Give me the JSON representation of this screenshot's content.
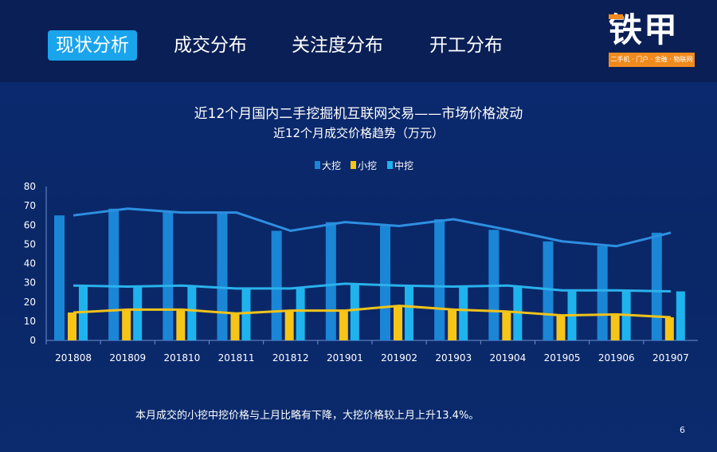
{
  "nav": {
    "tabs": [
      {
        "label": "现状分析",
        "active": true
      },
      {
        "label": "成交分布",
        "active": false
      },
      {
        "label": "关注度分布",
        "active": false
      },
      {
        "label": "开工分布",
        "active": false
      }
    ]
  },
  "logo": {
    "name": "铁甲",
    "tagline": "二手机 · 门户 · 金融 · 物联网"
  },
  "page_number": "6",
  "note": "本月成交的小挖中挖价格与上月比略有下降，大挖价格较上月上升13.4%。",
  "colors": {
    "large": "#1b86d6",
    "small": "#f6c515",
    "medium": "#1fb3ee",
    "large_line": "#2e8fe0",
    "small_line": "#f2c21a",
    "medium_line": "#2ab2ec"
  },
  "chart_data": {
    "type": "bar",
    "title": "近12个月国内二手挖掘机互联网交易——市场价格波动",
    "subtitle": "近12个月成交价格趋势（万元）",
    "categories": [
      "201808",
      "201809",
      "201810",
      "201811",
      "201812",
      "201901",
      "201902",
      "201903",
      "201904",
      "201905",
      "201906",
      "201907"
    ],
    "series": [
      {
        "name": "大挖",
        "values": [
          65,
          68.5,
          66.5,
          66.5,
          57,
          61.5,
          59.5,
          63,
          57.5,
          51.5,
          49,
          56
        ]
      },
      {
        "name": "小挖",
        "values": [
          14.5,
          16,
          16,
          14,
          15.5,
          15.5,
          18,
          16,
          15,
          13,
          13.5,
          12
        ]
      },
      {
        "name": "中挖",
        "values": [
          28.5,
          28,
          28.5,
          27,
          27,
          29.5,
          28.5,
          28,
          28.5,
          26,
          26,
          25.5
        ]
      }
    ],
    "ylim": [
      0,
      80
    ],
    "yticks": [
      "0",
      "10",
      "20",
      "30",
      "40",
      "50",
      "60",
      "70",
      "80"
    ],
    "legend": "top-center"
  }
}
